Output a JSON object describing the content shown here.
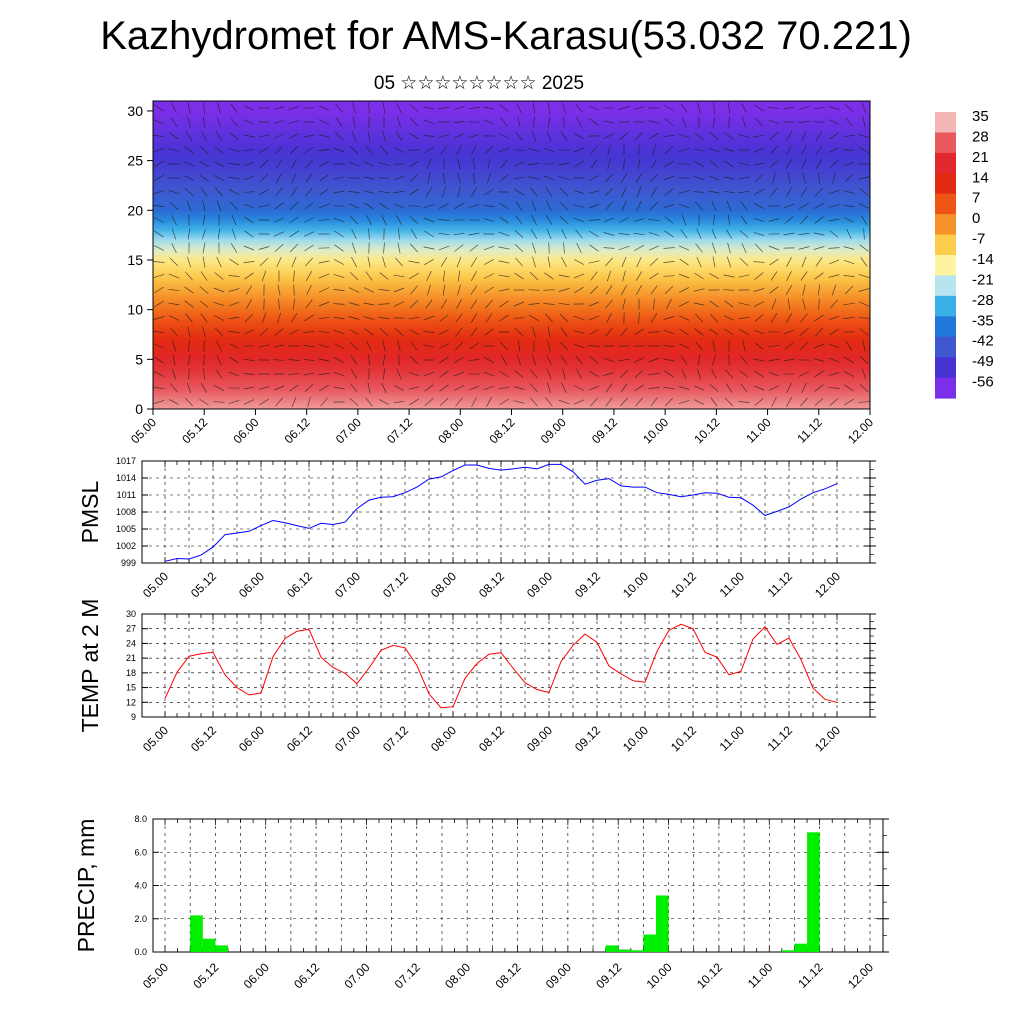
{
  "title": "Kazhydromet for AMS-Karasu(53.032 70.221)",
  "subtitle": "05 ☆☆☆☆☆☆☆☆ 2025",
  "chart_data": [
    {
      "type": "heatmap",
      "title": "",
      "xlabel": "",
      "ylabel": "",
      "x_ticks": [
        "05.00",
        "05.12",
        "06.00",
        "06.12",
        "07.00",
        "07.12",
        "08.00",
        "08.12",
        "09.00",
        "09.12",
        "10.00",
        "10.12",
        "11.00",
        "11.12",
        "12.00"
      ],
      "y_ticks": [
        0,
        5,
        10,
        15,
        20,
        25,
        30
      ],
      "ylim": [
        0,
        31
      ],
      "colorbar": {
        "labels": [
          "35",
          "28",
          "21",
          "14",
          "7",
          "0",
          "-7",
          "-14",
          "-21",
          "-28",
          "-35",
          "-42",
          "-49",
          "-56"
        ],
        "colors": [
          "#f4b5b5",
          "#e8595e",
          "#e1282c",
          "#e22a12",
          "#ee5514",
          "#f6922a",
          "#fccd4c",
          "#fdf3a0",
          "#b8e4f0",
          "#3bb0e8",
          "#2079d8",
          "#3f57cf",
          "#4733d2",
          "#7b2fe8"
        ]
      },
      "temperature_profile": [
        {
          "height": 0,
          "value": 33
        },
        {
          "height": 5,
          "value": 20
        },
        {
          "height": 10,
          "value": 4
        },
        {
          "height": 15,
          "value": -12
        },
        {
          "height": 20,
          "value": -38
        },
        {
          "height": 25,
          "value": -48
        },
        {
          "height": 30,
          "value": -56
        }
      ],
      "overlay": "wind barbs"
    },
    {
      "type": "line",
      "ylabel": "PMSL",
      "x_ticks": [
        "05.00",
        "05.12",
        "06.00",
        "06.12",
        "07.00",
        "07.12",
        "08.00",
        "08.12",
        "09.00",
        "09.12",
        "10.00",
        "10.12",
        "11.00",
        "11.12",
        "12.00"
      ],
      "y_ticks": [
        999,
        1002,
        1005,
        1008,
        1011,
        1014,
        1017
      ],
      "ylim": [
        999,
        1017
      ],
      "color": "#0000ff",
      "x_hours": [
        0,
        3,
        6,
        9,
        12,
        15,
        18,
        21,
        24,
        27,
        30,
        33,
        36,
        39,
        42,
        45,
        48,
        51,
        54,
        57,
        60,
        63,
        66,
        69,
        72,
        75,
        78,
        81,
        84,
        87,
        90,
        93,
        96,
        99,
        102,
        105,
        108,
        111,
        114,
        117,
        120,
        123,
        126,
        129,
        132,
        135,
        138,
        141,
        144,
        147,
        150,
        153,
        156,
        159,
        162,
        165,
        168
      ],
      "values": [
        999.3,
        999.8,
        999.7,
        1000.4,
        1001.8,
        1004.0,
        1004.3,
        1004.6,
        1005.6,
        1006.5,
        1006.1,
        1005.6,
        1005.1,
        1006.0,
        1005.8,
        1006.2,
        1008.6,
        1010.1,
        1010.6,
        1010.7,
        1011.4,
        1012.4,
        1013.8,
        1014.2,
        1015.3,
        1016.3,
        1016.3,
        1015.7,
        1015.4,
        1015.6,
        1015.9,
        1015.6,
        1016.4,
        1016.4,
        1015.1,
        1012.9,
        1013.6,
        1013.9,
        1012.6,
        1012.4,
        1012.4,
        1011.4,
        1011.1,
        1010.7,
        1011.0,
        1011.4,
        1011.3,
        1010.6,
        1010.5,
        1009.2,
        1007.4,
        1008.1,
        1008.9,
        1010.3,
        1011.4,
        1012.1,
        1013.0
      ]
    },
    {
      "type": "line",
      "ylabel": "TEMP at 2 M",
      "x_ticks": [
        "05.00",
        "05.12",
        "06.00",
        "06.12",
        "07.00",
        "07.12",
        "08.00",
        "08.12",
        "09.00",
        "09.12",
        "10.00",
        "10.12",
        "11.00",
        "11.12",
        "12.00"
      ],
      "y_ticks": [
        9,
        12,
        15,
        18,
        21,
        24,
        27,
        30
      ],
      "ylim": [
        9,
        30
      ],
      "color": "#ff0000",
      "x_hours": [
        0,
        3,
        6,
        9,
        12,
        15,
        18,
        21,
        24,
        27,
        30,
        33,
        36,
        39,
        42,
        45,
        48,
        51,
        54,
        57,
        60,
        63,
        66,
        69,
        72,
        75,
        78,
        81,
        84,
        87,
        90,
        93,
        96,
        99,
        102,
        105,
        108,
        111,
        114,
        117,
        120,
        123,
        126,
        129,
        132,
        135,
        138,
        141,
        144,
        147,
        150,
        153,
        156,
        159,
        162,
        165,
        168
      ],
      "values": [
        12.8,
        18.1,
        21.4,
        21.9,
        22.2,
        17.6,
        15.0,
        13.5,
        13.9,
        21.3,
        25.0,
        26.5,
        26.9,
        21.2,
        19.1,
        17.9,
        15.8,
        19.0,
        22.6,
        23.6,
        23.1,
        19.5,
        13.7,
        10.9,
        11.1,
        16.9,
        19.9,
        21.8,
        22.1,
        19.0,
        16.0,
        14.6,
        14.0,
        20.3,
        23.6,
        25.9,
        24.2,
        19.4,
        17.8,
        16.4,
        16.1,
        22.4,
        26.7,
        27.9,
        27.0,
        22.2,
        21.2,
        17.6,
        18.3,
        24.9,
        27.4,
        23.8,
        25.1,
        20.7,
        14.9,
        12.6,
        12.0
      ]
    },
    {
      "type": "bar",
      "ylabel": "PRECIP, mm",
      "x_ticks": [
        "05.00",
        "05.12",
        "06.00",
        "06.12",
        "07.00",
        "07.12",
        "08.00",
        "08.12",
        "09.00",
        "09.12",
        "10.00",
        "10.12",
        "11.00",
        "11.12",
        "12.00"
      ],
      "y_ticks": [
        "0.0",
        "2.0",
        "4.0",
        "6.0",
        "8.0"
      ],
      "ylim": [
        0,
        8
      ],
      "color": "#00ee00",
      "bars": [
        {
          "hour": 6,
          "value": 2.2
        },
        {
          "hour": 9,
          "value": 0.8
        },
        {
          "hour": 12,
          "value": 0.4
        },
        {
          "hour": 105,
          "value": 0.4
        },
        {
          "hour": 108,
          "value": 0.15
        },
        {
          "hour": 111,
          "value": 0.1
        },
        {
          "hour": 114,
          "value": 1.05
        },
        {
          "hour": 117,
          "value": 3.4
        },
        {
          "hour": 147,
          "value": 0.1
        },
        {
          "hour": 150,
          "value": 0.5
        },
        {
          "hour": 153,
          "value": 7.2
        }
      ]
    }
  ]
}
